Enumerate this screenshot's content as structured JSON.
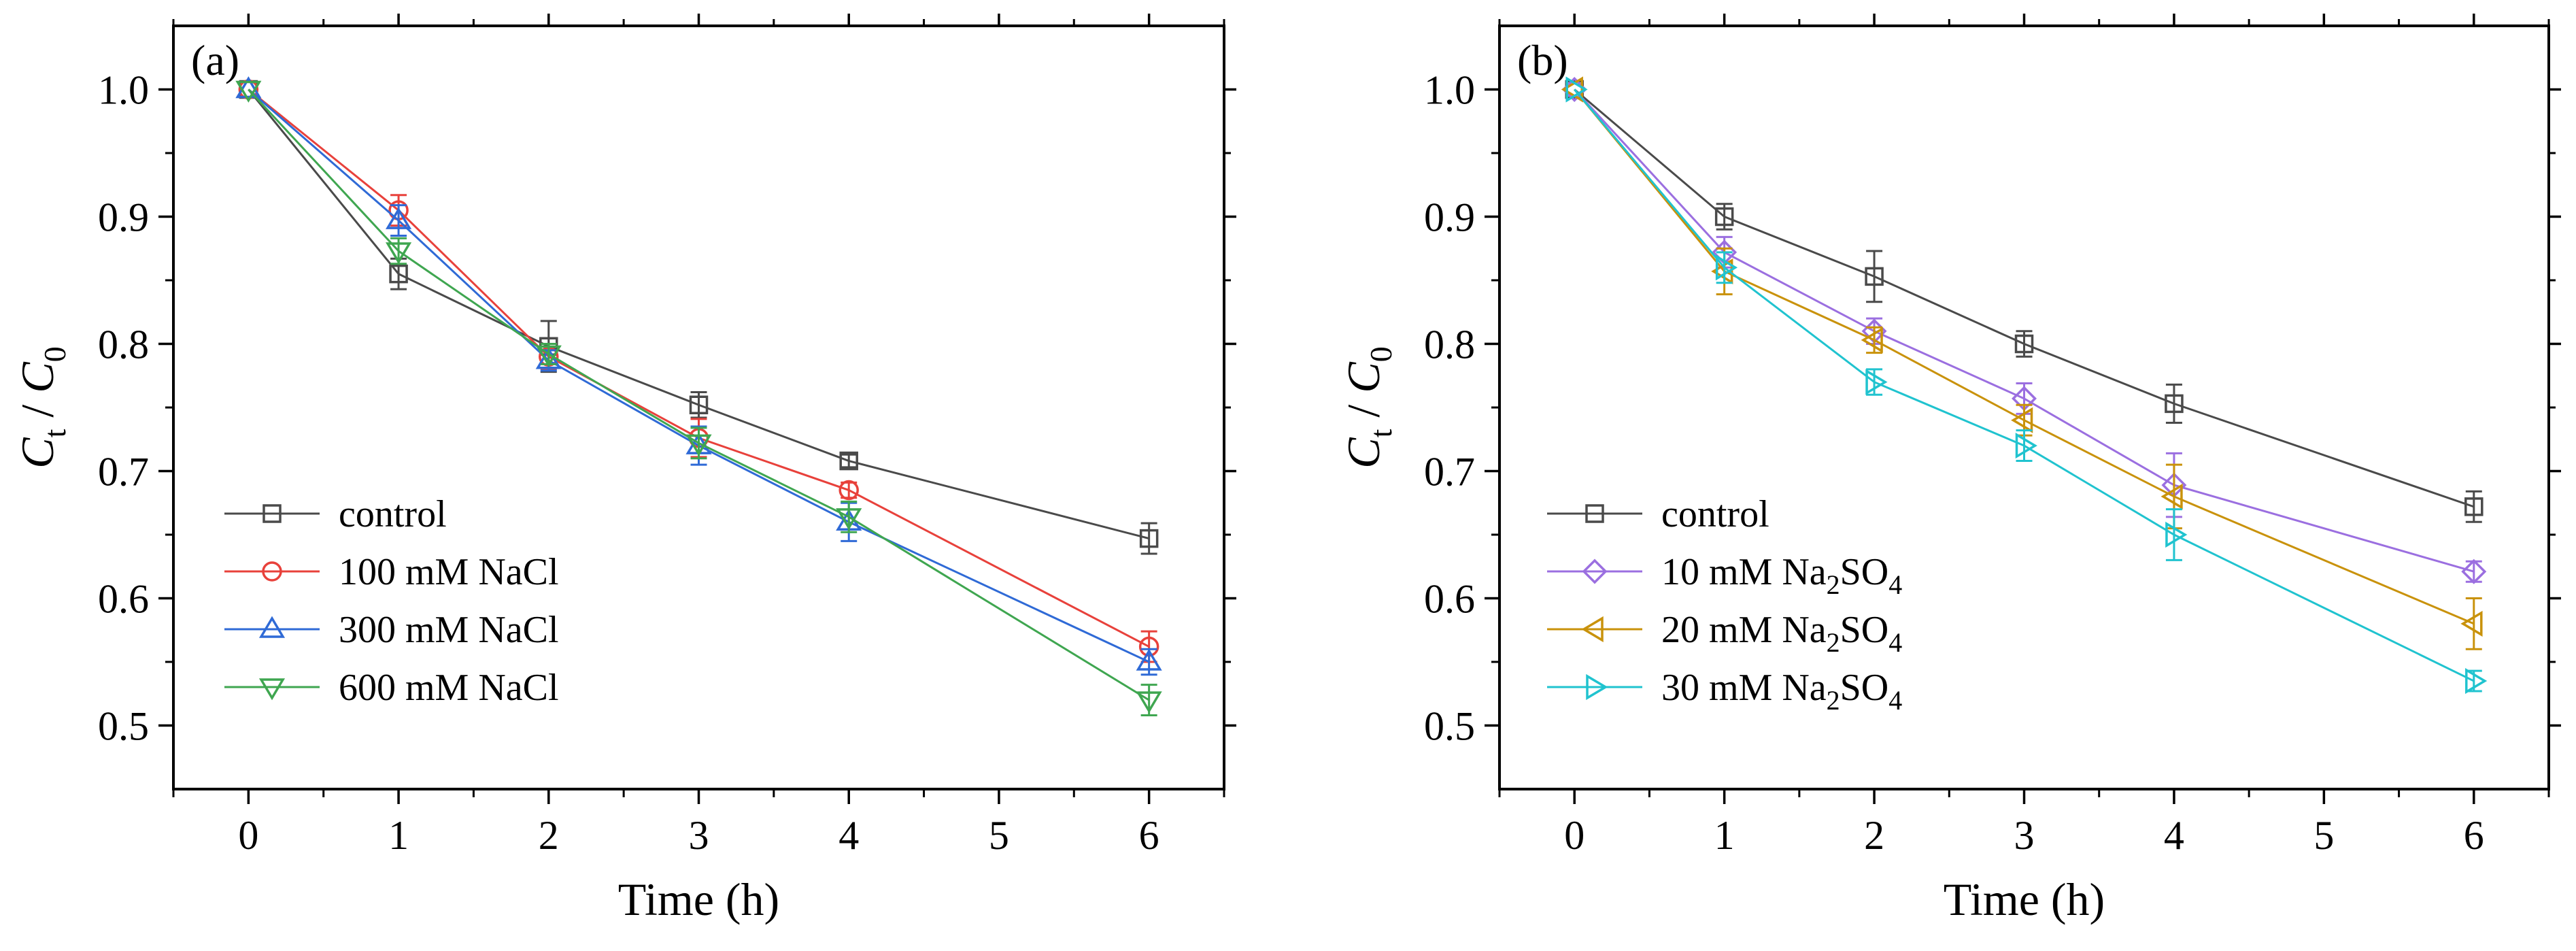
{
  "chart_data": [
    {
      "type": "line",
      "panel_label": "(a)",
      "title": "",
      "xlabel": "Time (h)",
      "ylabel": {
        "C": "C",
        "t": "t",
        "sep": " / ",
        "C0": "C",
        "zero": "0"
      },
      "xlim": [
        -0.5,
        6.5
      ],
      "ylim": [
        0.45,
        1.05
      ],
      "xticks": [
        "0",
        "1",
        "2",
        "3",
        "4",
        "5",
        "6"
      ],
      "yticks": [
        "0.5",
        "0.6",
        "0.7",
        "0.8",
        "0.9",
        "1.0"
      ],
      "x": [
        0,
        1,
        2,
        3,
        4,
        6
      ],
      "legend_position": "lower-left",
      "series": [
        {
          "name": "control",
          "label_main": "control",
          "color": "#4a4a4a",
          "marker": "square",
          "values": [
            1.0,
            0.855,
            0.798,
            0.752,
            0.708,
            0.647
          ],
          "errors": [
            0.003,
            0.012,
            0.02,
            0.01,
            0.005,
            0.012
          ]
        },
        {
          "name": "100 mM NaCl",
          "label_main": "100 mM NaCl",
          "color": "#e8413b",
          "marker": "circle",
          "values": [
            1.0,
            0.905,
            0.79,
            0.726,
            0.685,
            0.562
          ],
          "errors": [
            0.003,
            0.012,
            0.01,
            0.015,
            0.006,
            0.012
          ]
        },
        {
          "name": "300 mM NaCl",
          "label_main": "300 mM NaCl",
          "color": "#2f6ad6",
          "marker": "triangle-up",
          "values": [
            1.0,
            0.897,
            0.787,
            0.72,
            0.66,
            0.55
          ],
          "errors": [
            0.003,
            0.012,
            0.008,
            0.015,
            0.015,
            0.01
          ]
        },
        {
          "name": "600 mM NaCl",
          "label_main": "600 mM NaCl",
          "color": "#3fa650",
          "marker": "triangle-down",
          "values": [
            1.0,
            0.873,
            0.792,
            0.722,
            0.664,
            0.52
          ],
          "errors": [
            0.003,
            0.01,
            0.008,
            0.012,
            0.012,
            0.012
          ]
        }
      ]
    },
    {
      "type": "line",
      "panel_label": "(b)",
      "title": "",
      "xlabel": "Time (h)",
      "ylabel": {
        "C": "C",
        "t": "t",
        "sep": " / ",
        "C0": "C",
        "zero": "0"
      },
      "xlim": [
        -0.5,
        6.5
      ],
      "ylim": [
        0.45,
        1.05
      ],
      "xticks": [
        "0",
        "1",
        "2",
        "3",
        "4",
        "5",
        "6"
      ],
      "yticks": [
        "0.5",
        "0.6",
        "0.7",
        "0.8",
        "0.9",
        "1.0"
      ],
      "x": [
        0,
        1,
        2,
        3,
        4,
        6
      ],
      "legend_position": "lower-left",
      "series": [
        {
          "name": "control",
          "label_main": "control",
          "color": "#4a4a4a",
          "marker": "square",
          "values": [
            1.0,
            0.9,
            0.853,
            0.8,
            0.753,
            0.672
          ],
          "errors": [
            0.003,
            0.01,
            0.02,
            0.01,
            0.015,
            0.012
          ]
        },
        {
          "name": "10 mM Na2SO4",
          "label_main": "10 mM Na",
          "label_sub": "2",
          "label_tail": "SO",
          "label_sub2": "4",
          "color": "#9b6fe0",
          "marker": "diamond",
          "values": [
            1.0,
            0.872,
            0.81,
            0.757,
            0.689,
            0.621
          ],
          "errors": [
            0.003,
            0.012,
            0.01,
            0.012,
            0.025,
            0.008
          ]
        },
        {
          "name": "20 mM Na2SO4",
          "label_main": "20 mM Na",
          "label_sub": "2",
          "label_tail": "SO",
          "label_sub2": "4",
          "color": "#c9920b",
          "marker": "triangle-left",
          "values": [
            1.0,
            0.857,
            0.803,
            0.74,
            0.68,
            0.58
          ],
          "errors": [
            0.003,
            0.018,
            0.01,
            0.012,
            0.025,
            0.02
          ]
        },
        {
          "name": "30 mM Na2SO4",
          "label_main": "30 mM Na",
          "label_sub": "2",
          "label_tail": "SO",
          "label_sub2": "4",
          "color": "#20c3cf",
          "marker": "triangle-right",
          "values": [
            1.0,
            0.86,
            0.77,
            0.72,
            0.65,
            0.535
          ],
          "errors": [
            0.003,
            0.012,
            0.01,
            0.012,
            0.02,
            0.008
          ]
        }
      ]
    }
  ]
}
